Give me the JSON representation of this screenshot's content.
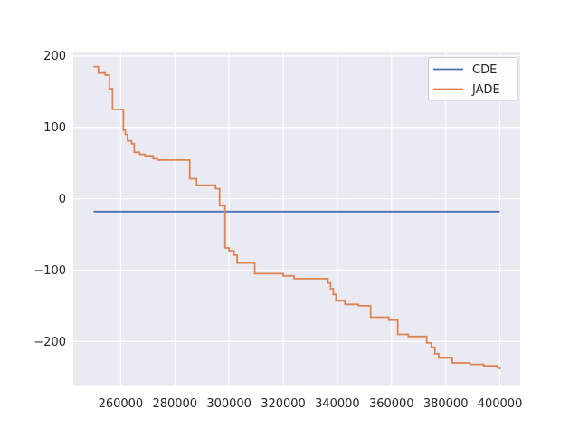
{
  "chart_data": {
    "type": "line",
    "title": "",
    "xlabel": "",
    "ylabel": "",
    "grid": true,
    "plot_bg_color": "#EAEAF2",
    "grid_color": "#FFFFFF",
    "tick_text_color": "#262626",
    "xlim": [
      242500,
      407500
    ],
    "ylim": [
      -261,
      206
    ],
    "xticks": [
      260000,
      280000,
      300000,
      320000,
      340000,
      360000,
      380000,
      400000
    ],
    "xtick_labels": [
      "260000",
      "280000",
      "300000",
      "320000",
      "340000",
      "360000",
      "380000",
      "400000"
    ],
    "yticks": [
      -200,
      -100,
      0,
      100,
      200
    ],
    "ytick_labels": [
      "−200",
      "−100",
      "0",
      "100",
      "200"
    ],
    "legend": {
      "position": "upper-right",
      "labels": [
        "CDE",
        "JADE"
      ]
    },
    "series": [
      {
        "name": "CDE",
        "color": "#4C72B0",
        "line_style": "line",
        "points": [
          [
            250000,
            -18
          ],
          [
            400000,
            -18
          ]
        ]
      },
      {
        "name": "JADE",
        "color": "#DD8452",
        "line_style": "step-after",
        "points": [
          [
            250000,
            185
          ],
          [
            251800,
            176
          ],
          [
            254300,
            173
          ],
          [
            255800,
            154
          ],
          [
            257000,
            125
          ],
          [
            261000,
            96
          ],
          [
            261700,
            90
          ],
          [
            262500,
            81
          ],
          [
            264000,
            77
          ],
          [
            265000,
            65
          ],
          [
            267000,
            62
          ],
          [
            269000,
            60
          ],
          [
            272000,
            56
          ],
          [
            273500,
            54
          ],
          [
            285500,
            28
          ],
          [
            288000,
            19
          ],
          [
            295000,
            14
          ],
          [
            296500,
            -10
          ],
          [
            298500,
            -69
          ],
          [
            300000,
            -73
          ],
          [
            301800,
            -79
          ],
          [
            303000,
            -90
          ],
          [
            309500,
            -105
          ],
          [
            320000,
            -108
          ],
          [
            324000,
            -112
          ],
          [
            336500,
            -118
          ],
          [
            337500,
            -126
          ],
          [
            338500,
            -134
          ],
          [
            339500,
            -143
          ],
          [
            342800,
            -148
          ],
          [
            347800,
            -150
          ],
          [
            352300,
            -166
          ],
          [
            359000,
            -170
          ],
          [
            362300,
            -190
          ],
          [
            366200,
            -193
          ],
          [
            373000,
            -202
          ],
          [
            374700,
            -208
          ],
          [
            376000,
            -217
          ],
          [
            377400,
            -223
          ],
          [
            382400,
            -230
          ],
          [
            389000,
            -232
          ],
          [
            394000,
            -234
          ],
          [
            399000,
            -236
          ],
          [
            400000,
            -239
          ]
        ]
      }
    ]
  }
}
